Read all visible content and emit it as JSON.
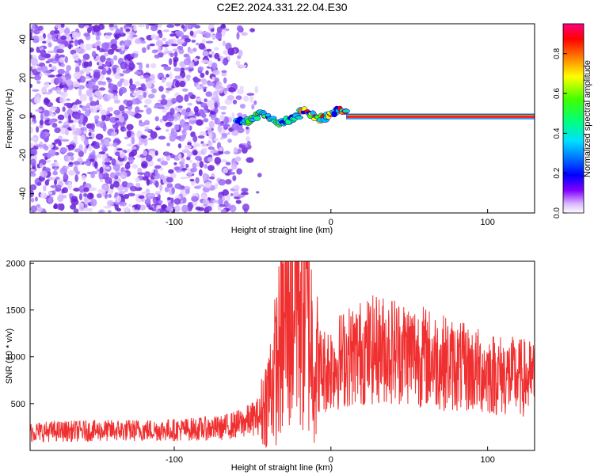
{
  "figure": {
    "title": "C2E2.2024.331.22.04.E30"
  },
  "chart_data": [
    {
      "type": "heatmap",
      "xlabel": "Height of straight line (km)",
      "ylabel": "Frequency (Hz)",
      "xlim": [
        -192,
        130
      ],
      "ylim": [
        -50,
        48
      ],
      "xticks": [
        -100,
        0,
        100
      ],
      "yticks": [
        -40,
        -20,
        0,
        20,
        40
      ],
      "colorbar": {
        "label": "Normalized spectral amplitude",
        "range": [
          0,
          0.95
        ],
        "ticks": [
          0.0,
          0.2,
          0.4,
          0.6,
          0.8
        ],
        "colors": [
          "#ffffff",
          "#c080ff",
          "#7000e0",
          "#0000ff",
          "#00c0ff",
          "#00ff80",
          "#40ff00",
          "#ffff00",
          "#ff8000",
          "#ff0000",
          "#ff0080"
        ]
      },
      "description_regions": {
        "noise_region_x": [
          -192,
          -45
        ],
        "signal_track_x": [
          -60,
          10
        ],
        "steady_line_x": [
          10,
          130
        ],
        "steady_line_frequency": 0
      }
    },
    {
      "type": "line",
      "xlabel": "Height of straight line (km)",
      "ylabel": "SNR (10 * v/v)",
      "xlim": [
        -192,
        130
      ],
      "ylim": [
        0,
        2020
      ],
      "xticks": [
        -100,
        0,
        100
      ],
      "yticks": [
        500,
        1000,
        1500,
        2000
      ],
      "color": "#f03030",
      "envelope": {
        "x": [
          -192,
          -150,
          -100,
          -70,
          -55,
          -45,
          -40,
          -35,
          -30,
          -25,
          -20,
          -15,
          -10,
          -5,
          0,
          10,
          20,
          30,
          40,
          50,
          60,
          70,
          80,
          90,
          100,
          110,
          120,
          130
        ],
        "y": [
          200,
          210,
          220,
          240,
          300,
          380,
          600,
          900,
          1300,
          1600,
          1800,
          1500,
          900,
          850,
          900,
          1000,
          1050,
          1080,
          1080,
          1050,
          1000,
          950,
          900,
          860,
          830,
          800,
          780,
          760
        ]
      }
    }
  ]
}
